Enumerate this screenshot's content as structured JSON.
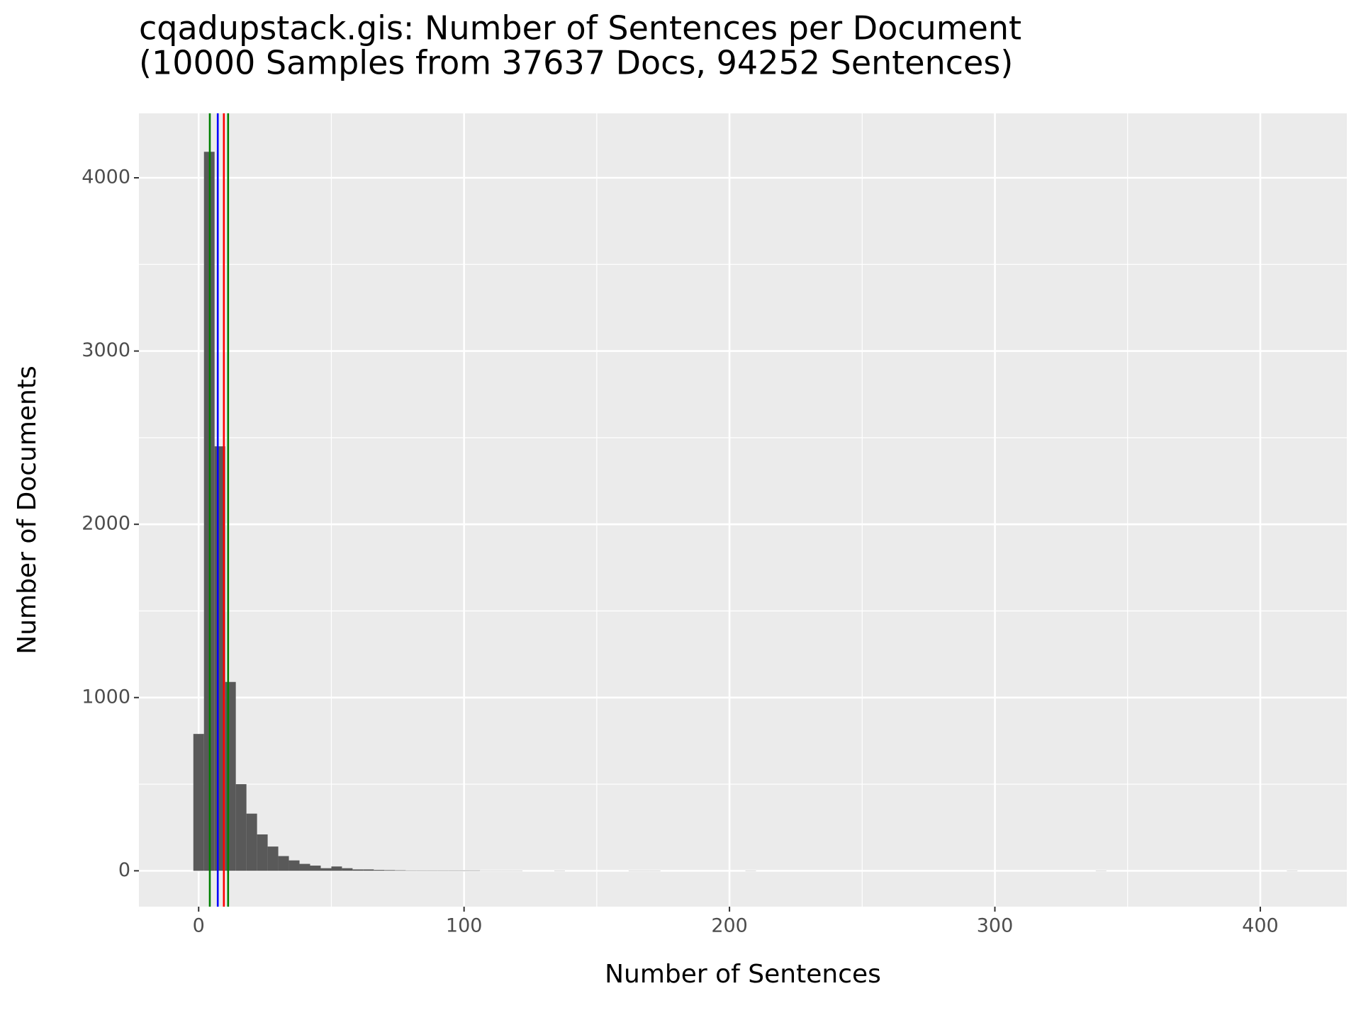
{
  "chart_data": {
    "type": "histogram",
    "title": "cqadupstack.gis: Number of Sentences per Document",
    "subtitle": "(10000 Samples from 37637 Docs, 94252 Sentences)",
    "x_label": "Number of Sentences",
    "y_label": "Number of Documents",
    "color": "#595959",
    "bins": [
      -2,
      2,
      6,
      10,
      14,
      18,
      22,
      26,
      30,
      34,
      38,
      42,
      46,
      50,
      54,
      58,
      62,
      66,
      70,
      74,
      78,
      82,
      86,
      90,
      94,
      98,
      102,
      106,
      110,
      114,
      118,
      122,
      126,
      130,
      134,
      138,
      142,
      146,
      150,
      154,
      158,
      162,
      166,
      170,
      174,
      178,
      182,
      186,
      190,
      194,
      198,
      202,
      206,
      210,
      214,
      218,
      222,
      226,
      230,
      234,
      238,
      242,
      246,
      250,
      254,
      258,
      262,
      266,
      270,
      274,
      278,
      282,
      286,
      290,
      294,
      298,
      302,
      306,
      310,
      314,
      318,
      322,
      326,
      330,
      334,
      338,
      342,
      346,
      350,
      354,
      358,
      362,
      366,
      370,
      374,
      378,
      382,
      386,
      390,
      394,
      398,
      402,
      406,
      410,
      414
    ],
    "values": [
      790,
      4150,
      2450,
      1090,
      500,
      330,
      210,
      140,
      85,
      60,
      40,
      30,
      15,
      25,
      15,
      8,
      8,
      5,
      4,
      3,
      2,
      2,
      2,
      2,
      2,
      2,
      2,
      1,
      1,
      1,
      1,
      0,
      0,
      0,
      1,
      0,
      0,
      0,
      0,
      0,
      0,
      1,
      1,
      1,
      0,
      0,
      0,
      0,
      0,
      0,
      0,
      0,
      1,
      0,
      0,
      0,
      0,
      0,
      0,
      0,
      0,
      0,
      0,
      0,
      0,
      0,
      0,
      0,
      0,
      0,
      0,
      0,
      0,
      0,
      0,
      0,
      0,
      0,
      0,
      0,
      0,
      0,
      0,
      0,
      0,
      1,
      0,
      0,
      0,
      0,
      0,
      0,
      0,
      0,
      0,
      0,
      0,
      0,
      0,
      0,
      0,
      0,
      0,
      1
    ],
    "vlines": [
      {
        "value": 4.2,
        "color": "#008000"
      },
      {
        "value": 7.2,
        "color": "#0000ff"
      },
      {
        "value": 9.5,
        "color": "#ff0000"
      },
      {
        "value": 11.1,
        "color": "#008000"
      }
    ],
    "xlim": [
      -22.5,
      432.6
    ],
    "xticks": [
      0,
      100,
      200,
      300,
      400
    ],
    "ylim": [
      -207,
      4372
    ],
    "yticks": [
      0,
      1000,
      2000,
      3000,
      4000
    ],
    "grid": true
  }
}
